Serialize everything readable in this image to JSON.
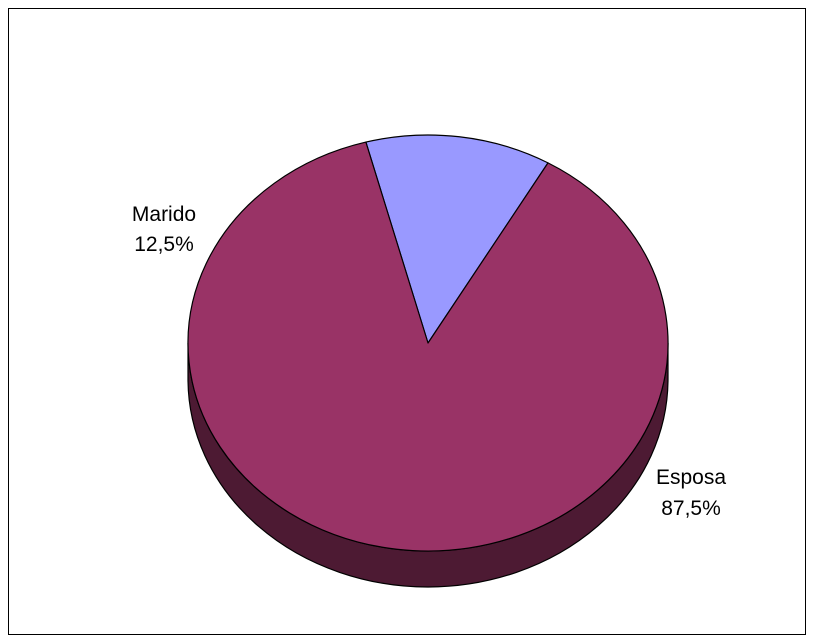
{
  "chart_data": {
    "type": "pie",
    "style": "3d",
    "slices": [
      {
        "label": "Marido",
        "value": 12.5,
        "value_label": "12,5%",
        "color": "#9999ff",
        "side_color": "#4f4f85"
      },
      {
        "label": "Esposa",
        "value": 87.5,
        "value_label": "87,5%",
        "color": "#993366",
        "side_color": "#4d1a33"
      }
    ],
    "legend": "none"
  }
}
